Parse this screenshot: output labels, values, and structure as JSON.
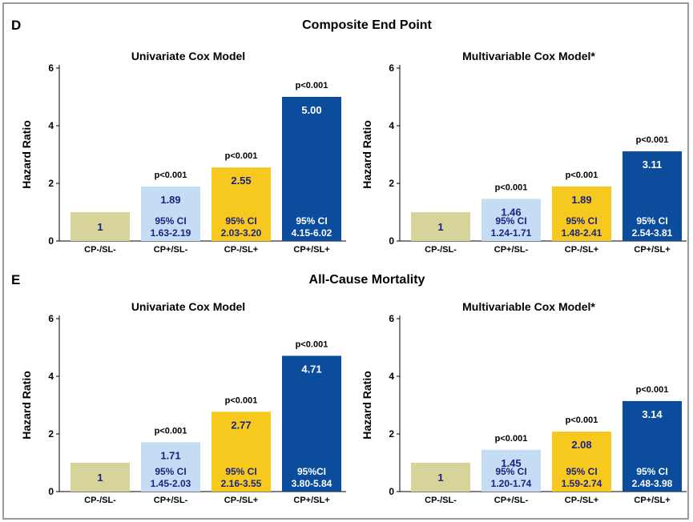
{
  "panels": [
    {
      "letter": "D",
      "title": "Composite End Point"
    },
    {
      "letter": "E",
      "title": "All-Cause Mortality"
    }
  ],
  "colors": {
    "CP-/SL-": "#d6d39b",
    "CP+/SL-": "#c5dcf5",
    "CP-/SL+": "#f7c81e",
    "CP+/SL+": "#0b4d9c",
    "dark_text": "#1a237e",
    "light_text": "#ffffff"
  },
  "chart_data": [
    {
      "type": "bar",
      "panel": "D",
      "title": "Univariate Cox Model",
      "ylabel": "Hazard Ratio",
      "ylim": [
        0,
        6
      ],
      "yticks": [
        0,
        2,
        4,
        6
      ],
      "categories": [
        "CP-/SL-",
        "CP+/SL-",
        "CP-/SL+",
        "CP+/SL+"
      ],
      "values": [
        1,
        1.89,
        2.55,
        5.0
      ],
      "value_labels": [
        "1",
        "1.89",
        "2.55",
        "5.00"
      ],
      "p_values": [
        "",
        "p<0.001",
        "p<0.001",
        "p<0.001"
      ],
      "ci_labels": [
        "",
        "95% CI",
        "95% CI",
        "95% CI"
      ],
      "ci_ranges": [
        "",
        "1.63-2.19",
        "2.03-3.20",
        "4.15-6.02"
      ]
    },
    {
      "type": "bar",
      "panel": "D",
      "title": "Multivariable Cox Model*",
      "ylabel": "Hazard Ratio",
      "ylim": [
        0,
        6
      ],
      "yticks": [
        0,
        2,
        4,
        6
      ],
      "categories": [
        "CP-/SL-",
        "CP+/SL-",
        "CP-/SL+",
        "CP+/SL+"
      ],
      "values": [
        1,
        1.46,
        1.89,
        3.11
      ],
      "value_labels": [
        "1",
        "1.46",
        "1.89",
        "3.11"
      ],
      "p_values": [
        "",
        "p<0.001",
        "p<0.001",
        "p<0.001"
      ],
      "ci_labels": [
        "",
        "95% CI",
        "95% CI",
        "95% CI"
      ],
      "ci_ranges": [
        "",
        "1.24-1.71",
        "1.48-2.41",
        "2.54-3.81"
      ]
    },
    {
      "type": "bar",
      "panel": "E",
      "title": "Univariate Cox Model",
      "ylabel": "Hazard Ratio",
      "ylim": [
        0,
        6
      ],
      "yticks": [
        0,
        2,
        4,
        6
      ],
      "categories": [
        "CP-/SL-",
        "CP+/SL-",
        "CP-/SL+",
        "CP+/SL+"
      ],
      "values": [
        1,
        1.71,
        2.77,
        4.71
      ],
      "value_labels": [
        "1",
        "1.71",
        "2.77",
        "4.71"
      ],
      "p_values": [
        "",
        "p<0.001",
        "p<0.001",
        "p<0.001"
      ],
      "ci_labels": [
        "",
        "95% CI",
        "95% CI",
        "95%CI"
      ],
      "ci_ranges": [
        "",
        "1.45-2.03",
        "2.16-3.55",
        "3.80-5.84"
      ]
    },
    {
      "type": "bar",
      "panel": "E",
      "title": "Multivariable Cox Model*",
      "ylabel": "Hazard Ratio",
      "ylim": [
        0,
        6
      ],
      "yticks": [
        0,
        2,
        4,
        6
      ],
      "categories": [
        "CP-/SL-",
        "CP+/SL-",
        "CP-/SL+",
        "CP+/SL+"
      ],
      "values": [
        1,
        1.45,
        2.08,
        3.14
      ],
      "value_labels": [
        "1",
        "1.45",
        "2.08",
        "3.14"
      ],
      "p_values": [
        "",
        "p<0.001",
        "p<0.001",
        "p<0.001"
      ],
      "ci_labels": [
        "",
        "95% CI",
        "95% CI",
        "95% CI"
      ],
      "ci_ranges": [
        "",
        "1.20-1.74",
        "1.59-2.74",
        "2.48-3.98"
      ]
    }
  ]
}
